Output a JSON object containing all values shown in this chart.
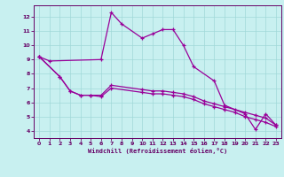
{
  "bg_color": "#c8f0f0",
  "grid_color": "#b8e8e8",
  "line_color": "#990099",
  "xlabel": "Windchill (Refroidissement éolien,°C)",
  "xlim": [
    -0.5,
    23.5
  ],
  "ylim": [
    3.5,
    12.8
  ],
  "xticks": [
    0,
    1,
    2,
    3,
    4,
    5,
    6,
    7,
    8,
    9,
    10,
    11,
    12,
    13,
    14,
    15,
    16,
    17,
    18,
    19,
    20,
    21,
    22,
    23
  ],
  "yticks": [
    4,
    5,
    6,
    7,
    8,
    9,
    10,
    11,
    12
  ],
  "series1_x": [
    0,
    1,
    6,
    7,
    8,
    10,
    11,
    12,
    13,
    14,
    15,
    17,
    18,
    20,
    21,
    22,
    23
  ],
  "series1_y": [
    9.2,
    8.9,
    9.0,
    12.3,
    11.5,
    10.5,
    10.8,
    11.1,
    11.1,
    10.0,
    8.5,
    7.5,
    5.8,
    5.2,
    4.1,
    5.2,
    4.4
  ],
  "series2_x": [
    0,
    2,
    3,
    4,
    5,
    6,
    7,
    10,
    11,
    12,
    13,
    14,
    15,
    16,
    17,
    18,
    19,
    20,
    21,
    22,
    23
  ],
  "series2_y": [
    9.2,
    7.8,
    6.8,
    6.5,
    6.5,
    6.5,
    7.2,
    6.9,
    6.8,
    6.8,
    6.7,
    6.6,
    6.4,
    6.1,
    5.9,
    5.7,
    5.5,
    5.3,
    5.1,
    4.9,
    4.4
  ],
  "series3_x": [
    0,
    2,
    3,
    4,
    5,
    6,
    7,
    10,
    11,
    12,
    13,
    14,
    15,
    16,
    17,
    18,
    19,
    20,
    21,
    22,
    23
  ],
  "series3_y": [
    9.2,
    7.8,
    6.8,
    6.5,
    6.5,
    6.4,
    7.0,
    6.7,
    6.6,
    6.6,
    6.5,
    6.4,
    6.2,
    5.9,
    5.7,
    5.5,
    5.3,
    5.0,
    4.8,
    4.6,
    4.3
  ]
}
